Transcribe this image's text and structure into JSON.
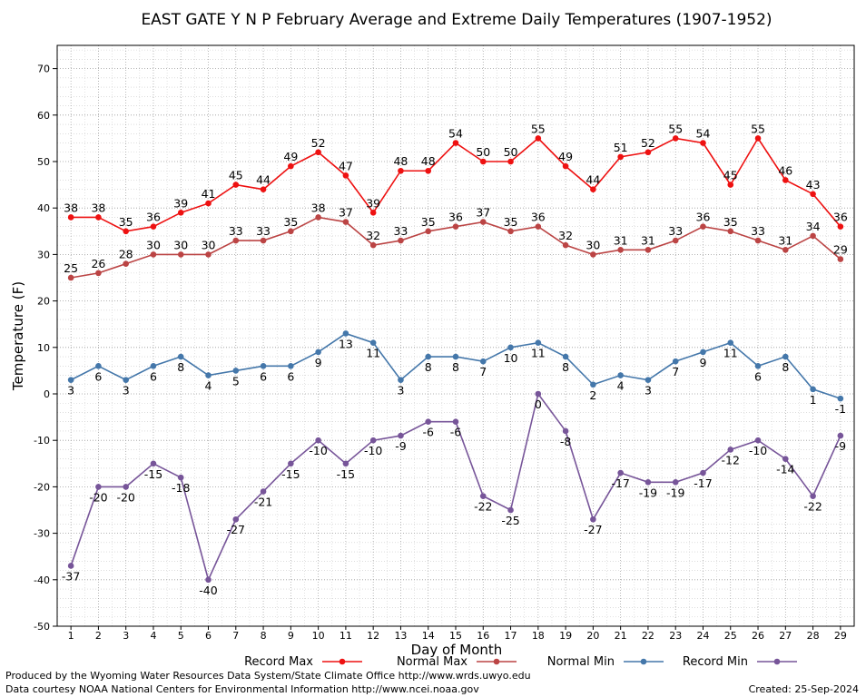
{
  "chart_data": {
    "type": "line",
    "title": "EAST GATE Y N P February Average and Extreme Daily Temperatures (1907-1952)",
    "xlabel": "Day of Month",
    "ylabel": "Temperature (F)",
    "ylim": [
      -50,
      75
    ],
    "yticks": [
      -50,
      -40,
      -30,
      -20,
      -10,
      0,
      10,
      20,
      30,
      40,
      50,
      60,
      70
    ],
    "x": [
      1,
      2,
      3,
      4,
      5,
      6,
      7,
      8,
      9,
      10,
      11,
      12,
      13,
      14,
      15,
      16,
      17,
      18,
      19,
      20,
      21,
      22,
      23,
      24,
      25,
      26,
      27,
      28,
      29
    ],
    "grid": true,
    "series": [
      {
        "name": "Record Max",
        "color": "#ee1111",
        "values": [
          38,
          38,
          35,
          36,
          39,
          41,
          45,
          44,
          49,
          52,
          47,
          39,
          48,
          48,
          54,
          50,
          50,
          55,
          49,
          44,
          51,
          52,
          55,
          54,
          45,
          55,
          46,
          43,
          36
        ]
      },
      {
        "name": "Normal Max",
        "color": "#bb4444",
        "values": [
          25,
          26,
          28,
          30,
          30,
          30,
          33,
          33,
          35,
          38,
          37,
          32,
          33,
          35,
          36,
          37,
          35,
          36,
          32,
          30,
          31,
          31,
          33,
          36,
          35,
          33,
          31,
          34,
          29
        ]
      },
      {
        "name": "Normal Min",
        "color": "#4477aa",
        "values": [
          3,
          6,
          3,
          6,
          8,
          4,
          5,
          6,
          6,
          9,
          13,
          11,
          3,
          8,
          8,
          7,
          10,
          11,
          8,
          2,
          4,
          3,
          7,
          9,
          11,
          6,
          8,
          1,
          -1
        ]
      },
      {
        "name": "Record Min",
        "color": "#775599",
        "values": [
          -37,
          -20,
          -20,
          -15,
          -18,
          -40,
          -27,
          -21,
          -15,
          -10,
          -15,
          -10,
          -9,
          -6,
          -6,
          -22,
          -25,
          0,
          -8,
          -27,
          -17,
          -19,
          -19,
          -17,
          -12,
          -10,
          -14,
          -22,
          -9
        ]
      }
    ]
  },
  "footer": {
    "produced_by": "Produced by the Wyoming Water Resources Data System/State Climate Office http://www.wrds.uwyo.edu",
    "courtesy": "Data courtesy NOAA National Centers for Environmental Information http://www.ncei.noaa.gov",
    "created": "Created:  25-Sep-2024"
  }
}
